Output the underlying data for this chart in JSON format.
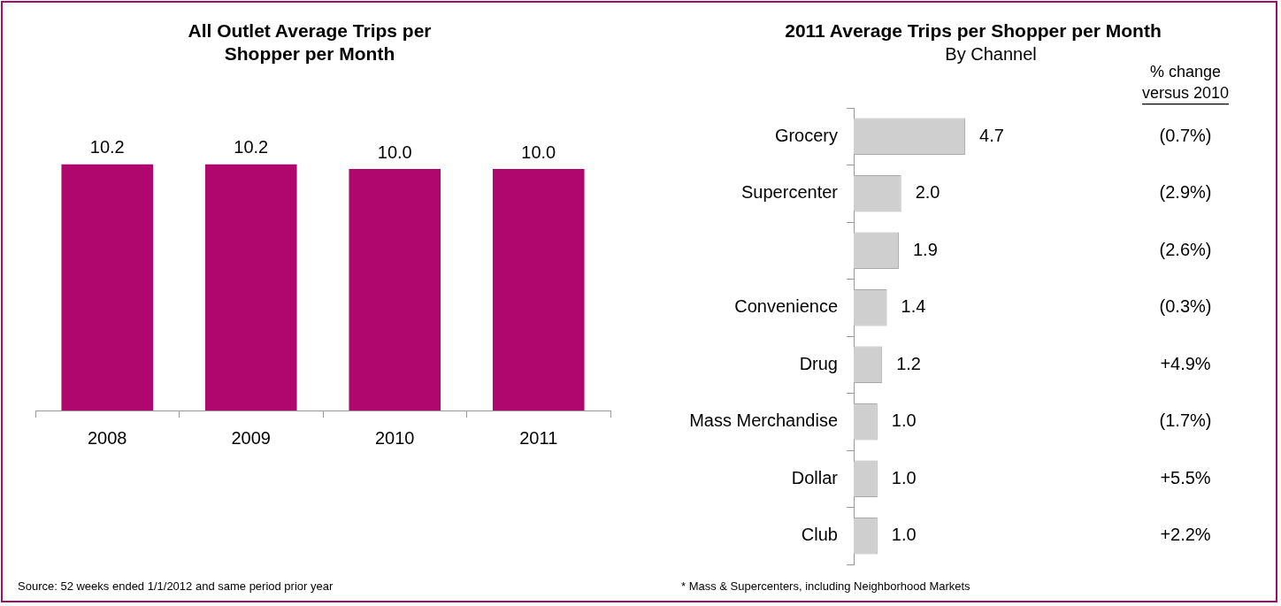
{
  "chart_data": [
    {
      "type": "bar",
      "title": "All Outlet Average Trips per Shopper per Month",
      "categories": [
        "2008",
        "2009",
        "2010",
        "2011"
      ],
      "values": [
        10.2,
        10.2,
        10.0,
        10.0
      ],
      "value_labels": [
        "10.2",
        "10.2",
        "10.0",
        "10.0"
      ],
      "color": "#b0076f",
      "annotations": [
        "Source: 52 weeks ended 1/1/2012 and same period prior year"
      ]
    },
    {
      "type": "bar",
      "orientation": "horizontal",
      "title": "2011 Average Trips per Shopper per Month",
      "subtitle": "By Channel",
      "categories": [
        "Grocery",
        "Supercenter",
        null,
        "Convenience",
        "Drug",
        "Mass Merchandise",
        "Dollar",
        "Club"
      ],
      "values": [
        4.7,
        2.0,
        1.9,
        1.4,
        1.2,
        1.0,
        1.0,
        1.0
      ],
      "value_labels": [
        "4.7",
        "2.0",
        "1.9",
        "1.4",
        "1.2",
        "1.0",
        "1.0",
        "1.0"
      ],
      "color": "#cfcfcf",
      "annotations": [
        "% change",
        "versus 2010",
        "(0.7%)",
        "(2.9%)",
        "(2.6%)",
        "(0.3%)",
        "+4.9%",
        "(1.7%)",
        "+5.5%",
        "+2.2%",
        "* Mass & Supercenters, including Neighborhood Markets"
      ]
    }
  ]
}
